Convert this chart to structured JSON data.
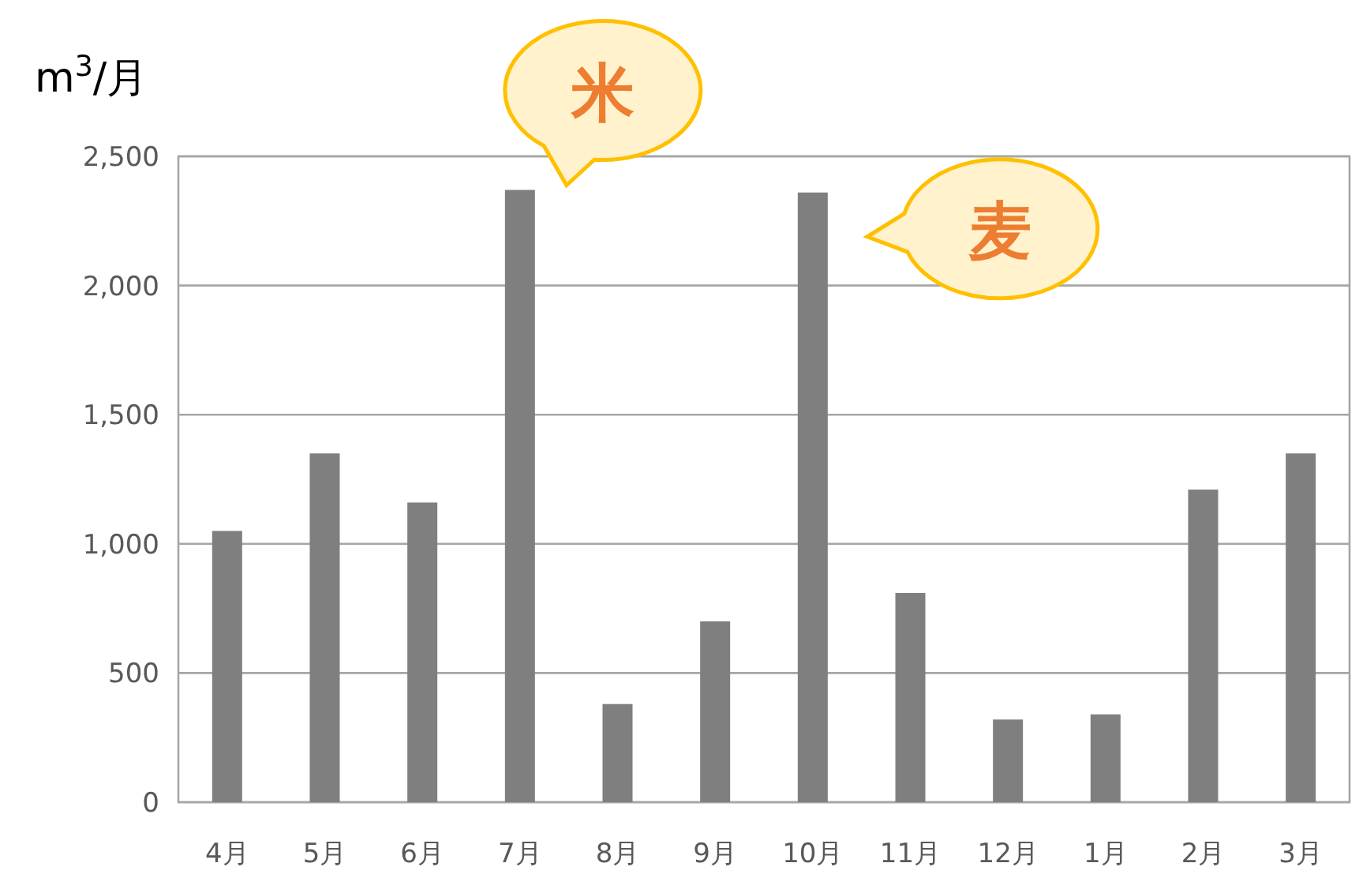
{
  "chart_data": {
    "type": "bar",
    "ylabel": "m$^{3}$/月",
    "categories": [
      "4月",
      "5月",
      "6月",
      "7月",
      "8月",
      "9月",
      "10月",
      "11月",
      "12月",
      "1月",
      "2月",
      "3月"
    ],
    "values": [
      1050,
      1350,
      1160,
      2370,
      380,
      700,
      2360,
      810,
      320,
      340,
      1210,
      1350
    ],
    "color": "#7f7f7f",
    "ylim": [
      0,
      2500
    ],
    "yticks": [
      0,
      500,
      {
        "value": 1000,
        "label": "1,000"
      },
      {
        "value": 1500,
        "label": "1,500"
      },
      {
        "value": 2000,
        "label": "2,000"
      },
      {
        "value": 2500,
        "label": "2,500"
      }
    ],
    "grid": "y",
    "annotations": [
      {
        "text": "米",
        "x": "7月",
        "y": 2370
      },
      {
        "text": "麦",
        "x": "10月",
        "y": 2360
      }
    ]
  }
}
